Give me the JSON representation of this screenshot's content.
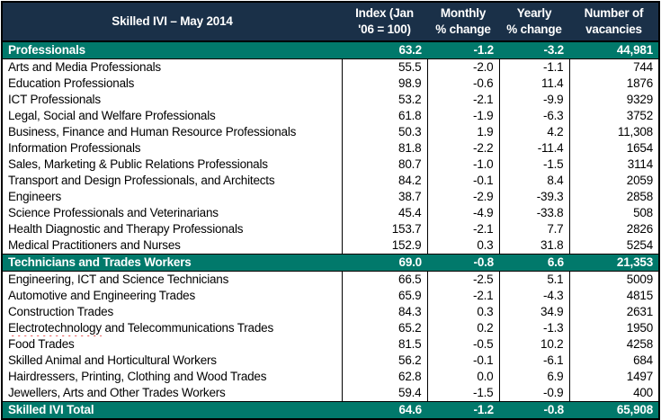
{
  "table": {
    "title": "Skilled IVI – May 2014",
    "columns": [
      "Skilled IVI – May 2014",
      "Index (Jan\n'06 = 100)",
      "Monthly\n% change",
      "Yearly\n% change",
      "Number of\nvacancies"
    ],
    "rows": [
      {
        "type": "section",
        "label": "Professionals",
        "index": "63.2",
        "monthly": "-1.2",
        "yearly": "-3.2",
        "vacancies": "44,981"
      },
      {
        "type": "data",
        "label": "Arts and Media Professionals",
        "index": "55.5",
        "monthly": "-2.0",
        "yearly": "-1.1",
        "vacancies": "744"
      },
      {
        "type": "data",
        "label": "Education Professionals",
        "index": "98.9",
        "monthly": "-0.6",
        "yearly": "11.4",
        "vacancies": "1876"
      },
      {
        "type": "data",
        "label": "ICT Professionals",
        "index": "53.2",
        "monthly": "-2.1",
        "yearly": "-9.9",
        "vacancies": "9329"
      },
      {
        "type": "data",
        "label": "Legal, Social and Welfare Professionals",
        "index": "61.8",
        "monthly": "-1.9",
        "yearly": "-6.3",
        "vacancies": "3752"
      },
      {
        "type": "data",
        "label": "Business, Finance and Human Resource Professionals",
        "index": "50.3",
        "monthly": "1.9",
        "yearly": "4.2",
        "vacancies": "11,308"
      },
      {
        "type": "data",
        "label": "Information Professionals",
        "index": "81.8",
        "monthly": "-2.2",
        "yearly": "-11.4",
        "vacancies": "1654"
      },
      {
        "type": "data",
        "label": "Sales, Marketing & Public Relations Professionals",
        "index": "80.7",
        "monthly": "-1.0",
        "yearly": "-1.5",
        "vacancies": "3114"
      },
      {
        "type": "data",
        "label": "Transport and Design Professionals, and Architects",
        "index": "84.2",
        "monthly": "-0.1",
        "yearly": "8.4",
        "vacancies": "2059"
      },
      {
        "type": "data",
        "label": "Engineers",
        "index": "38.7",
        "monthly": "-2.9",
        "yearly": "-39.3",
        "vacancies": "2858"
      },
      {
        "type": "data",
        "label": "Science Professionals and Veterinarians",
        "index": "45.4",
        "monthly": "-4.9",
        "yearly": "-33.8",
        "vacancies": "508"
      },
      {
        "type": "data",
        "label": "Health Diagnostic and Therapy Professionals",
        "index": "153.7",
        "monthly": "-2.1",
        "yearly": "7.7",
        "vacancies": "2826"
      },
      {
        "type": "data",
        "label": "Medical Practitioners and Nurses",
        "index": "152.9",
        "monthly": "0.3",
        "yearly": "31.8",
        "vacancies": "5254"
      },
      {
        "type": "section",
        "label": "Technicians and Trades Workers",
        "index": "69.0",
        "monthly": "-0.8",
        "yearly": "6.6",
        "vacancies": "21,353"
      },
      {
        "type": "data",
        "label": "Engineering, ICT and Science Technicians",
        "index": "66.5",
        "monthly": "-2.5",
        "yearly": "5.1",
        "vacancies": "5009"
      },
      {
        "type": "data",
        "label": "Automotive and Engineering Trades",
        "index": "65.9",
        "monthly": "-2.1",
        "yearly": "-4.3",
        "vacancies": "4815"
      },
      {
        "type": "data",
        "label": "Construction Trades",
        "index": "84.3",
        "monthly": "0.3",
        "yearly": "34.9",
        "vacancies": "2631"
      },
      {
        "type": "data",
        "label_parts": [
          "Electrotechnology",
          " and Telecommunications Trades"
        ],
        "spellcheck": "red-wavy-underline",
        "index": "65.2",
        "monthly": "0.2",
        "yearly": "-1.3",
        "vacancies": "1950"
      },
      {
        "type": "data",
        "label": "Food Trades",
        "index": "81.5",
        "monthly": "-0.5",
        "yearly": "10.2",
        "vacancies": "4258"
      },
      {
        "type": "data",
        "label": "Skilled Animal and Horticultural Workers",
        "index": "56.2",
        "monthly": "-0.1",
        "yearly": "-6.1",
        "vacancies": "684"
      },
      {
        "type": "data",
        "label": "Hairdressers, Printing, Clothing and Wood Trades",
        "index": "62.8",
        "monthly": "0.0",
        "yearly": "6.9",
        "vacancies": "1497"
      },
      {
        "type": "data",
        "label": "Jewellers, Arts and Other Trades Workers",
        "index": "59.4",
        "monthly": "-1.5",
        "yearly": "-0.9",
        "vacancies": "400"
      },
      {
        "type": "total",
        "label": "Skilled IVI Total",
        "index": "64.6",
        "monthly": "-1.2",
        "yearly": "-0.8",
        "vacancies": "65,908"
      }
    ]
  },
  "colors": {
    "header_bg": "#1a3048",
    "section_bg": "#01796b",
    "border": "#000000",
    "spellcheck_underline": "#e00000"
  }
}
